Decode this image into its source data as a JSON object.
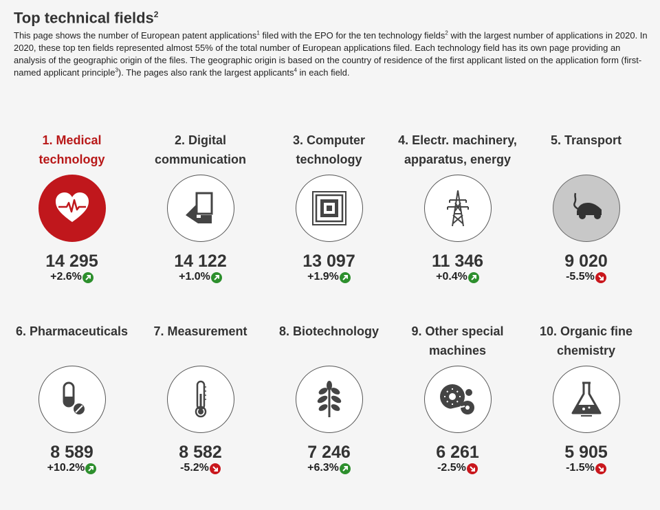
{
  "header": {
    "title": "Top technical fields",
    "title_sup": "2",
    "intro": [
      {
        "t": "This page shows the number of European patent applications"
      },
      {
        "s": "1"
      },
      {
        "t": " filed with the EPO for the ten technology fields"
      },
      {
        "s": "2"
      },
      {
        "t": " with the largest number of applications in 2020. In 2020, these top ten fields represented almost 55% of the total number of European applications filed. Each technology field has its own page providing an analysis of the geographic origin of the files. The geographic origin is based on the country of residence of the first applicant listed on the application form (first-named applicant principle"
      },
      {
        "s": "3"
      },
      {
        "t": "). The pages also rank the largest applicants"
      },
      {
        "s": "4"
      },
      {
        "t": " in each field."
      }
    ]
  },
  "colors": {
    "accent": "#c0171c",
    "up": "#2d8f2d",
    "down": "#c9171d"
  },
  "fields": [
    {
      "label": "1. Medical technology",
      "count": "14 295",
      "change": "+2.6%",
      "trend": "up",
      "icon": "heart-icon",
      "active": true
    },
    {
      "label": "2. Digital communication",
      "count": "14 122",
      "change": "+1.0%",
      "trend": "up",
      "icon": "device-icon"
    },
    {
      "label": "3. Computer technology",
      "count": "13 097",
      "change": "+1.9%",
      "trend": "up",
      "icon": "chip-icon"
    },
    {
      "label": "4. Electr. machinery, apparatus, energy",
      "count": "11 346",
      "change": "+0.4%",
      "trend": "up",
      "icon": "pylon-icon"
    },
    {
      "label": "5. Transport",
      "count": "9 020",
      "change": "-5.5%",
      "trend": "down",
      "icon": "car-icon",
      "grey": true
    },
    {
      "label": "6. Pharmaceuticals",
      "count": "8 589",
      "change": "+10.2%",
      "trend": "up",
      "icon": "pill-icon"
    },
    {
      "label": "7. Measurement",
      "count": "8 582",
      "change": "-5.2%",
      "trend": "down",
      "icon": "thermometer-icon"
    },
    {
      "label": "8. Biotechnology",
      "count": "7 246",
      "change": "+6.3%",
      "trend": "up",
      "icon": "leaf-icon"
    },
    {
      "label": "9. Other special machines",
      "count": "6 261",
      "change": "-2.5%",
      "trend": "down",
      "icon": "machine-icon"
    },
    {
      "label": "10. Organic fine chemistry",
      "count": "5 905",
      "change": "-1.5%",
      "trend": "down",
      "icon": "flask-icon"
    }
  ]
}
